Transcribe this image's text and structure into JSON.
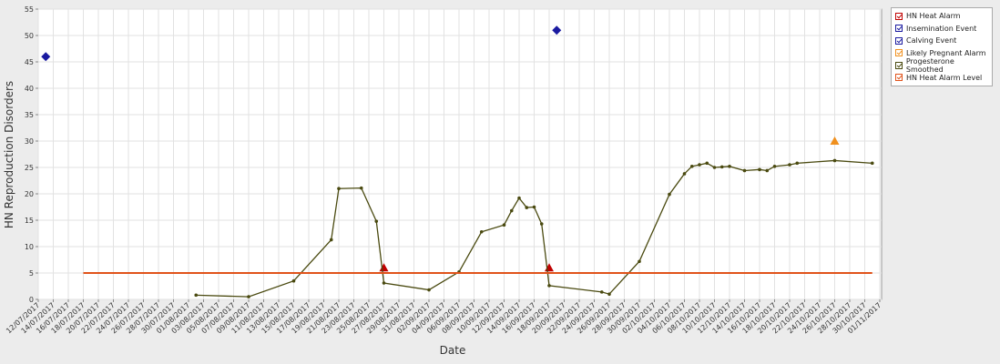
{
  "chart_data": {
    "type": "line",
    "x_label": "Date",
    "y_label": "HN Reproduction Disorders",
    "ylim": [
      0,
      55
    ],
    "yticks": [
      0,
      5,
      10,
      15,
      20,
      25,
      30,
      35,
      40,
      45,
      50,
      55
    ],
    "xlim": [
      "12/07/2017",
      "01/11/2017"
    ],
    "xticks": [
      "12/07/2017",
      "14/07/2017",
      "16/07/2017",
      "18/07/2017",
      "20/07/2017",
      "22/07/2017",
      "24/07/2017",
      "26/07/2017",
      "28/07/2017",
      "30/07/2017",
      "01/08/2017",
      "03/08/2017",
      "05/08/2017",
      "07/08/2017",
      "09/08/2017",
      "11/08/2017",
      "13/08/2017",
      "15/08/2017",
      "17/08/2017",
      "19/08/2017",
      "21/08/2017",
      "23/08/2017",
      "25/08/2017",
      "27/08/2017",
      "29/08/2017",
      "31/08/2017",
      "02/09/2017",
      "04/09/2017",
      "06/09/2017",
      "08/09/2017",
      "10/09/2017",
      "12/09/2017",
      "14/09/2017",
      "16/09/2017",
      "18/09/2017",
      "20/09/2017",
      "22/09/2017",
      "24/09/2017",
      "26/09/2017",
      "28/09/2017",
      "30/09/2017",
      "02/10/2017",
      "04/10/2017",
      "06/10/2017",
      "08/10/2017",
      "10/10/2017",
      "12/10/2017",
      "14/10/2017",
      "16/10/2017",
      "18/10/2017",
      "20/10/2017",
      "22/10/2017",
      "24/10/2017",
      "26/10/2017",
      "28/10/2017",
      "30/10/2017",
      "01/11/2017"
    ],
    "grid": true,
    "legend": "right",
    "series": [
      {
        "name": "HN Heat Alarm",
        "color": "#c00000",
        "marker": "triangle",
        "line": false,
        "x": [
          "27/08/2017",
          "18/09/2017"
        ],
        "values": [
          6,
          6
        ]
      },
      {
        "name": "Insemination Event",
        "color": "#1a1aa0",
        "marker": "diamond",
        "line": false,
        "x": [
          "19/09/2017"
        ],
        "values": [
          51
        ]
      },
      {
        "name": "Calving Event",
        "color": "#1a1aa0",
        "marker": "diamond",
        "line": false,
        "x": [
          "13/07/2017"
        ],
        "values": [
          46
        ]
      },
      {
        "name": "Likely Pregnant Alarm",
        "color": "#f0901e",
        "marker": "triangle",
        "line": false,
        "x": [
          "26/10/2017"
        ],
        "values": [
          30
        ]
      },
      {
        "name": "Progesterone Smoothed",
        "color": "#4a4a10",
        "marker": "circle",
        "line": true,
        "x": [
          "02/08/2017",
          "09/08/2017",
          "15/08/2017",
          "20/08/2017",
          "21/08/2017",
          "24/08/2017",
          "26/08/2017",
          "27/08/2017",
          "02/09/2017",
          "06/09/2017",
          "09/09/2017",
          "12/09/2017",
          "13/09/2017",
          "14/09/2017",
          "15/09/2017",
          "16/09/2017",
          "17/09/2017",
          "18/09/2017",
          "25/09/2017",
          "26/09/2017",
          "30/09/2017",
          "04/10/2017",
          "06/10/2017",
          "07/10/2017",
          "08/10/2017",
          "09/10/2017",
          "10/10/2017",
          "11/10/2017",
          "12/10/2017",
          "14/10/2017",
          "16/10/2017",
          "17/10/2017",
          "18/10/2017",
          "20/10/2017",
          "21/10/2017",
          "26/10/2017",
          "31/10/2017"
        ],
        "values": [
          0.8,
          0.5,
          3.5,
          11.3,
          21,
          21.1,
          14.8,
          3.1,
          1.8,
          5.2,
          12.8,
          14.1,
          16.8,
          19.2,
          17.4,
          17.5,
          14.3,
          2.6,
          1.4,
          1.0,
          7.2,
          19.9,
          23.8,
          25.2,
          25.5,
          25.8,
          25.0,
          25.1,
          25.2,
          24.4,
          24.6,
          24.4,
          25.2,
          25.5,
          25.8,
          26.3,
          25.8
        ]
      },
      {
        "name": "HN Heat Alarm Level",
        "color": "#e0521a",
        "marker": "none",
        "line": true,
        "x": [
          "18/07/2017",
          "31/10/2017"
        ],
        "values": [
          5,
          5
        ]
      }
    ]
  }
}
